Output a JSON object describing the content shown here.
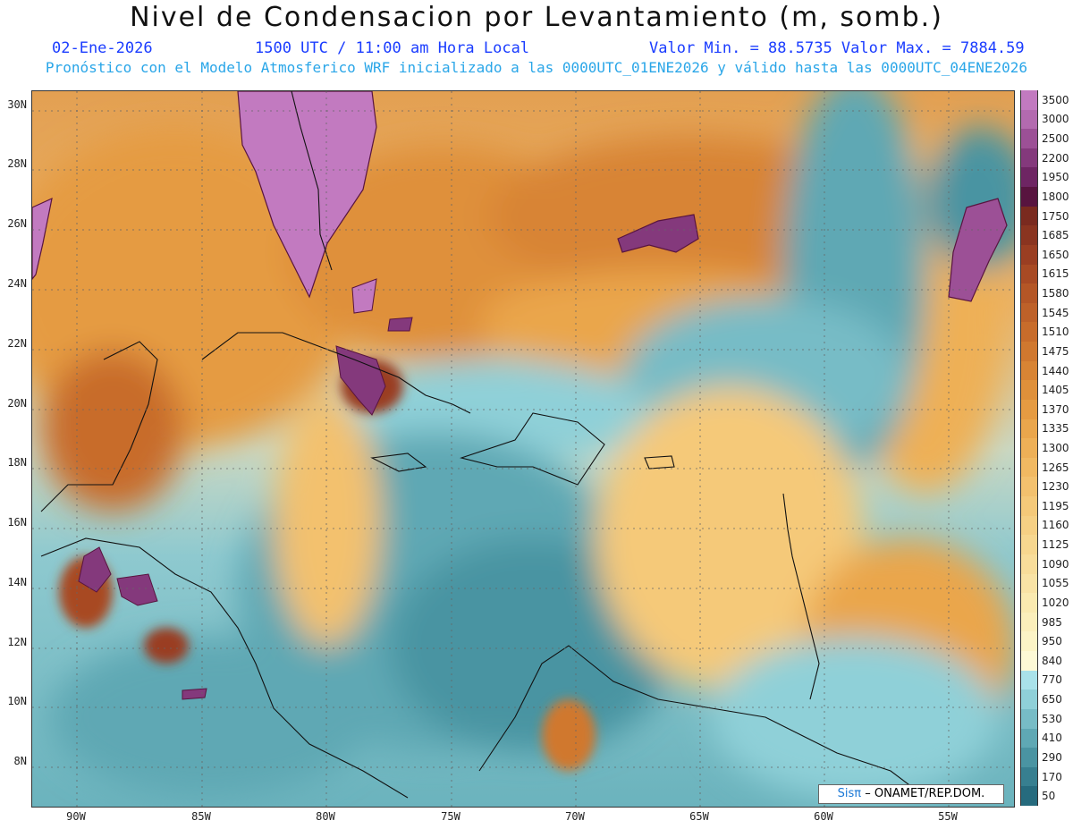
{
  "title": "Nivel de Condensacion por Levantamiento (m, somb.)",
  "date": "02-Ene-2026",
  "time": "1500 UTC / 11:00 am Hora Local",
  "minmax": "Valor Min. = 88.5735  Valor Max. = 7884.59",
  "forecast": "Pronóstico con el Modelo Atmosferico WRF inicializado a las 0000UTC_01ENE2026 y válido hasta las  0000UTC_04ENE2026",
  "credit_prefix": "Sisπ",
  "credit_text": "– ONAMET/REP.DOM.",
  "lat_labels": [
    "30N",
    "28N",
    "26N",
    "24N",
    "22N",
    "20N",
    "18N",
    "16N",
    "14N",
    "12N",
    "10N",
    "8N"
  ],
  "lon_labels": [
    "90W",
    "85W",
    "80W",
    "75W",
    "70W",
    "65W",
    "60W",
    "55W"
  ],
  "colors": {
    "title": "#111111",
    "date_line": "#1a3cff",
    "forecast_line": "#2aa6e8"
  },
  "legend": [
    {
      "label": "3500",
      "color": "#c27ac0"
    },
    {
      "label": "3000",
      "color": "#b36aaf"
    },
    {
      "label": "2500",
      "color": "#9c5096"
    },
    {
      "label": "2200",
      "color": "#84397c"
    },
    {
      "label": "1950",
      "color": "#6e2563"
    },
    {
      "label": "1800",
      "color": "#58143f"
    },
    {
      "label": "1750",
      "color": "#7a2a1f"
    },
    {
      "label": "1685",
      "color": "#8a3420"
    },
    {
      "label": "1650",
      "color": "#9a3e22"
    },
    {
      "label": "1615",
      "color": "#a84a24"
    },
    {
      "label": "1580",
      "color": "#b45626"
    },
    {
      "label": "1545",
      "color": "#be6129"
    },
    {
      "label": "1510",
      "color": "#c86c2b"
    },
    {
      "label": "1475",
      "color": "#d0782f"
    },
    {
      "label": "1440",
      "color": "#d88434"
    },
    {
      "label": "1405",
      "color": "#df903a"
    },
    {
      "label": "1370",
      "color": "#e59b42"
    },
    {
      "label": "1335",
      "color": "#eaa64c"
    },
    {
      "label": "1300",
      "color": "#eeb057"
    },
    {
      "label": "1265",
      "color": "#f1b962"
    },
    {
      "label": "1230",
      "color": "#f3c16e"
    },
    {
      "label": "1195",
      "color": "#f5c979"
    },
    {
      "label": "1160",
      "color": "#f6d084"
    },
    {
      "label": "1125",
      "color": "#f7d78f"
    },
    {
      "label": "1090",
      "color": "#f8dd9a"
    },
    {
      "label": "1055",
      "color": "#f9e3a5"
    },
    {
      "label": "1020",
      "color": "#faeab0"
    },
    {
      "label": "985",
      "color": "#fbefbb"
    },
    {
      "label": "950",
      "color": "#fcf4c6"
    },
    {
      "label": "840",
      "color": "#fdf9d6"
    },
    {
      "label": "770",
      "color": "#a9e2ea"
    },
    {
      "label": "650",
      "color": "#8fd0d8"
    },
    {
      "label": "530",
      "color": "#77bcc6"
    },
    {
      "label": "410",
      "color": "#5fa8b4"
    },
    {
      "label": "290",
      "color": "#4a94a2"
    },
    {
      "label": "170",
      "color": "#377f90"
    },
    {
      "label": "50",
      "color": "#266b7e"
    }
  ]
}
